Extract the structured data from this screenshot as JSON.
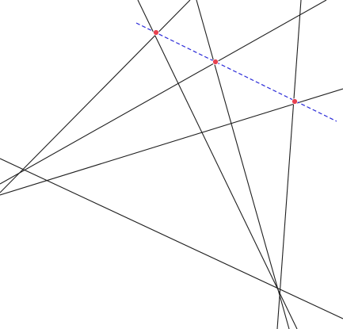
{
  "diagram": {
    "colors": {
      "background": "#ffffff",
      "line": "#1f1f1f",
      "dashed_line": "#2b2bd8",
      "point": "#e8414f"
    },
    "lines": [
      {
        "id": "l1"
      },
      {
        "id": "l2"
      },
      {
        "id": "l3"
      },
      {
        "id": "l4"
      },
      {
        "id": "l5"
      },
      {
        "id": "l6"
      },
      {
        "id": "l7"
      },
      {
        "id": "l8"
      },
      {
        "id": "l9"
      }
    ],
    "dashed_line": {
      "id": "collinear-axis"
    },
    "points": [
      {
        "id": "p1"
      },
      {
        "id": "p2"
      },
      {
        "id": "p3"
      }
    ]
  }
}
